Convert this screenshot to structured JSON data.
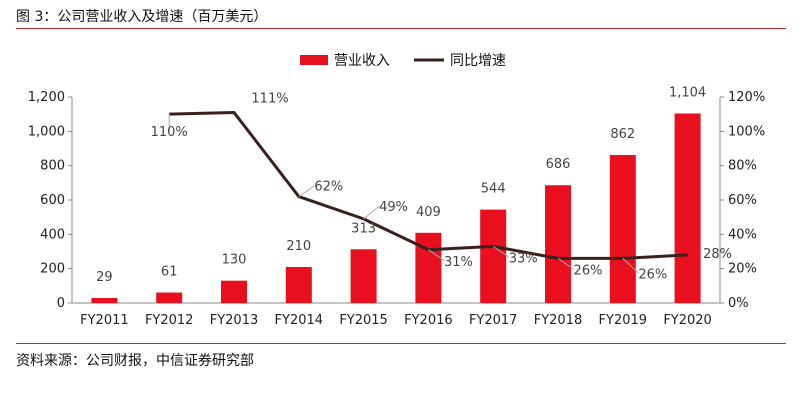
{
  "figure": {
    "title": "图 3：公司营业收入及增速（百万美元）",
    "source": "资料来源：公司财报，中信证券研究部"
  },
  "chart_data": {
    "type": "bar",
    "categories": [
      "FY2011",
      "FY2012",
      "FY2013",
      "FY2014",
      "FY2015",
      "FY2016",
      "FY2017",
      "FY2018",
      "FY2019",
      "FY2020"
    ],
    "series": [
      {
        "name": "营业收入",
        "type": "bar",
        "axis": "left",
        "color": "#e8101f",
        "values": [
          29,
          61,
          130,
          210,
          313,
          409,
          544,
          686,
          862,
          1104
        ],
        "labels": [
          "29",
          "61",
          "130",
          "210",
          "313",
          "409",
          "544",
          "686",
          "862",
          "1,104"
        ]
      },
      {
        "name": "同比增速",
        "type": "line",
        "axis": "right",
        "color": "#3a1f1f",
        "values": [
          null,
          110,
          111,
          62,
          49,
          31,
          33,
          26,
          26,
          28
        ],
        "labels": [
          "",
          "110%",
          "111%",
          "62%",
          "49%",
          "31%",
          "33%",
          "26%",
          "26%",
          "28%"
        ]
      }
    ],
    "y_left": {
      "min": 0,
      "max": 1200,
      "ticks": [
        0,
        200,
        400,
        600,
        800,
        1000,
        1200
      ],
      "tick_labels": [
        "0",
        "200",
        "400",
        "600",
        "800",
        "1,000",
        "1,200"
      ]
    },
    "y_right": {
      "min": 0,
      "max": 120,
      "ticks": [
        0,
        20,
        40,
        60,
        80,
        100,
        120
      ],
      "tick_labels": [
        "0%",
        "20%",
        "40%",
        "60%",
        "80%",
        "100%",
        "120%"
      ]
    },
    "grid": false,
    "legend_position": "top-center"
  }
}
